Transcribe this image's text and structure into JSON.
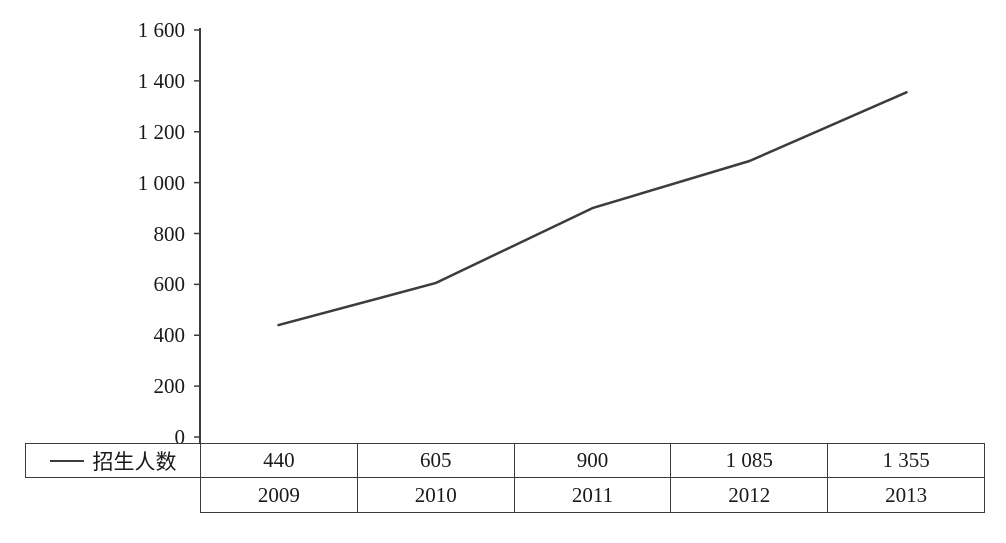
{
  "chart_data": {
    "type": "line",
    "categories": [
      "2009",
      "2010",
      "2011",
      "2012",
      "2013"
    ],
    "series": [
      {
        "name": "招生人数",
        "values": [
          440,
          605,
          900,
          1085,
          1355
        ]
      }
    ],
    "value_labels": [
      "440",
      "605",
      "900",
      "1 085",
      "1 355"
    ],
    "yticks": [
      "1 600",
      "1 400",
      "1 200",
      "1 000",
      "800",
      "600",
      "400",
      "200",
      "0"
    ],
    "ylim": [
      0,
      1600
    ],
    "ytick_step": 200,
    "grid": false,
    "legend_position": "table-left",
    "line_color": "#3c3c3c",
    "axis_color": "#3c3c3c"
  }
}
